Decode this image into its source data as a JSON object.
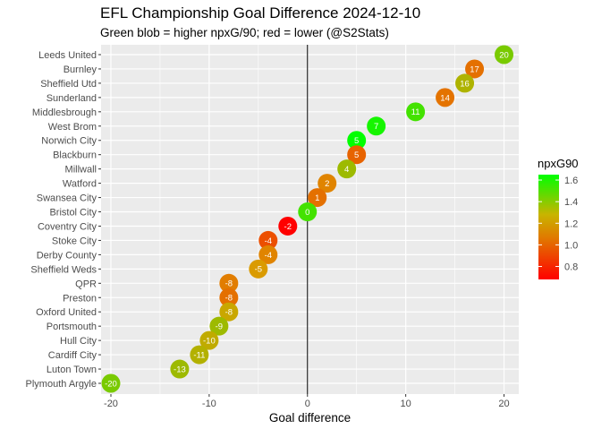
{
  "chart_data": {
    "type": "scatter",
    "title": "EFL Championship Goal Difference 2024-12-10",
    "subtitle": "Green blob = higher npxG/90; red = lower (@S2Stats)",
    "xlabel": "Goal difference",
    "ylabel": "",
    "xlim": [
      -21,
      21.5
    ],
    "x_ticks": [
      -20,
      -10,
      0,
      10,
      20
    ],
    "grid": true,
    "legend_placement": "right",
    "legend": {
      "title": "npxG90",
      "min": 0.68,
      "max": 1.65,
      "ticks": [
        1.6,
        1.4,
        1.2,
        1.0,
        0.8
      ],
      "color_low": "#ff0000",
      "color_mid": "#d9a000",
      "color_high": "#00ff00"
    },
    "points": [
      {
        "team": "Leeds United",
        "gd": 20,
        "npxg90": 1.38
      },
      {
        "team": "Burnley",
        "gd": 17,
        "npxg90": 1.02
      },
      {
        "team": "Sheffield Utd",
        "gd": 16,
        "npxg90": 1.26
      },
      {
        "team": "Sunderland",
        "gd": 14,
        "npxg90": 1.03
      },
      {
        "team": "Middlesbrough",
        "gd": 11,
        "npxg90": 1.5
      },
      {
        "team": "West Brom",
        "gd": 7,
        "npxg90": 1.6
      },
      {
        "team": "Norwich City",
        "gd": 5,
        "npxg90": 1.65
      },
      {
        "team": "Blackburn",
        "gd": 5,
        "npxg90": 0.98
      },
      {
        "team": "Millwall",
        "gd": 4,
        "npxg90": 1.3
      },
      {
        "team": "Watford",
        "gd": 2,
        "npxg90": 1.08
      },
      {
        "team": "Swansea City",
        "gd": 1,
        "npxg90": 1.02
      },
      {
        "team": "Bristol City",
        "gd": 0,
        "npxg90": 1.5
      },
      {
        "team": "Coventry City",
        "gd": -2,
        "npxg90": 0.68
      },
      {
        "team": "Stoke City",
        "gd": -4,
        "npxg90": 0.92
      },
      {
        "team": "Derby County",
        "gd": -4,
        "npxg90": 1.08
      },
      {
        "team": "Sheffield Weds",
        "gd": -5,
        "npxg90": 1.15
      },
      {
        "team": "QPR",
        "gd": -8,
        "npxg90": 1.06
      },
      {
        "team": "Preston",
        "gd": -8,
        "npxg90": 1.02
      },
      {
        "team": "Oxford United",
        "gd": -8,
        "npxg90": 1.2
      },
      {
        "team": "Portsmouth",
        "gd": -9,
        "npxg90": 1.3
      },
      {
        "team": "Hull City",
        "gd": -10,
        "npxg90": 1.22
      },
      {
        "team": "Cardiff City",
        "gd": -11,
        "npxg90": 1.25
      },
      {
        "team": "Luton Town",
        "gd": -13,
        "npxg90": 1.3
      },
      {
        "team": "Plymouth Argyle",
        "gd": -20,
        "npxg90": 1.38
      }
    ]
  }
}
